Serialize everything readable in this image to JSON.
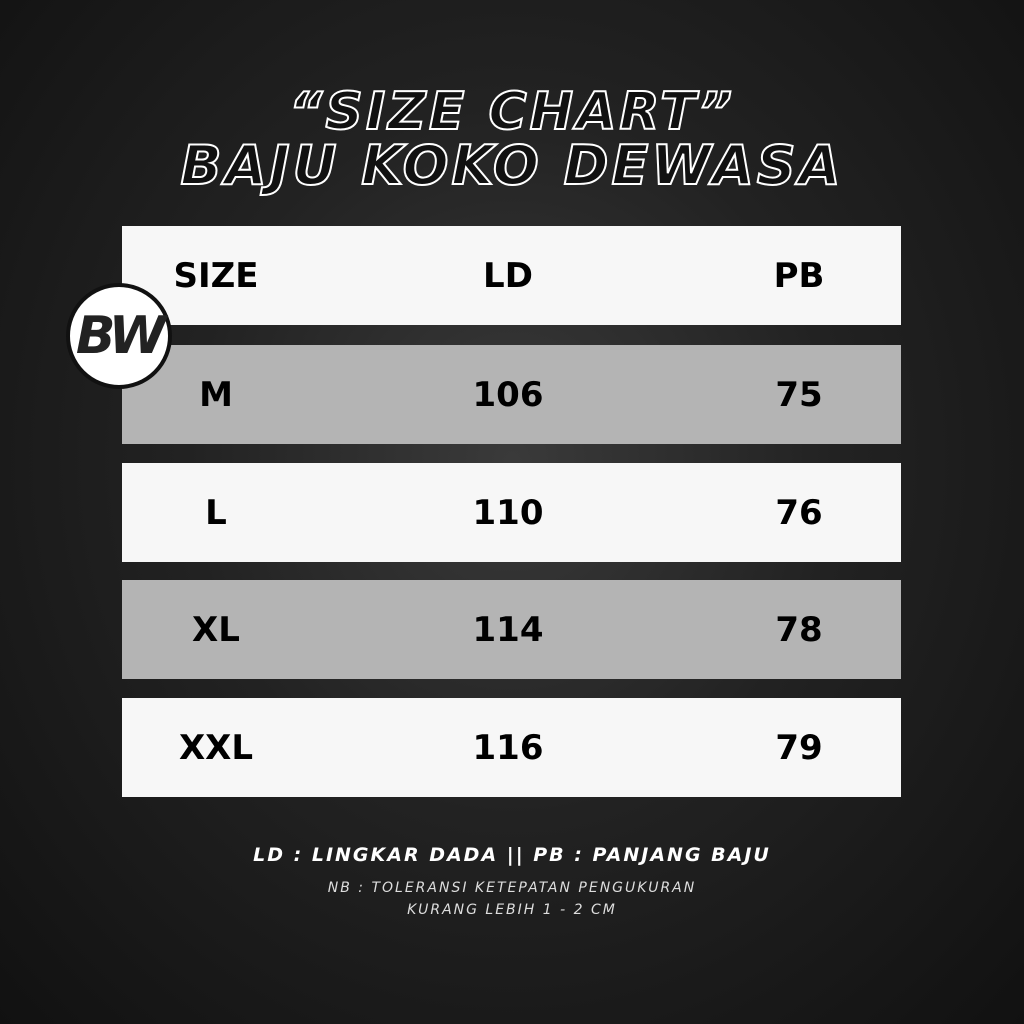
{
  "title": {
    "line1": "“SIZE CHART”",
    "line2": "BAJU KOKO DEWASA"
  },
  "logo": {
    "text": "BW"
  },
  "table": {
    "headers": [
      "SIZE",
      "LD",
      "PB"
    ],
    "rows": [
      [
        "M",
        "106",
        "75"
      ],
      [
        "L",
        "110",
        "76"
      ],
      [
        "XL",
        "114",
        "78"
      ],
      [
        "XXL",
        "116",
        "79"
      ]
    ]
  },
  "legend": "LD : LINGKAR DADA || PB : PANJANG BAJU",
  "note": {
    "line1": "NB : TOLERANSI KETEPATAN PENGUKURAN",
    "line2": "KURANG LEBIH 1 - 2 CM"
  },
  "colors": {
    "background": "#1e1e1e",
    "row_white": "#f7f7f7",
    "row_gray": "#b4b4b4"
  }
}
